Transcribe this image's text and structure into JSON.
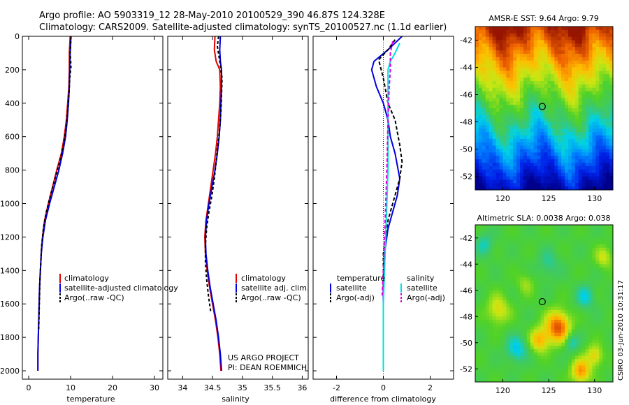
{
  "header": {
    "line1": "Argo profile: AO 5903319_12 28-May-2010 20100529_390 46.87S 124.328E",
    "line2": "Climatology: CARS2009. Satellite-adjusted climatology: synTS_20100527.nc (1.1d earlier)"
  },
  "colors": {
    "red": "#e00000",
    "blue": "#0000dd",
    "black": "#000000",
    "cyan": "#00e0e0",
    "magenta": "#e000e0"
  },
  "credits": {
    "project": "US ARGO PROJECT",
    "pi": "PI: DEAN ROEMMICH",
    "side": "CSIRO 03-Jun-2010 10:31:17"
  },
  "chart_data": [
    {
      "type": "line",
      "id": "temperature",
      "xlabel": "temperature",
      "xlim": [
        -1.5,
        32
      ],
      "xticks": [
        0,
        10,
        20,
        30
      ],
      "ylim": [
        0,
        2050
      ],
      "yticks": [
        0,
        200,
        400,
        600,
        800,
        1000,
        1200,
        1400,
        1600,
        1800,
        2000
      ],
      "y_reversed": true,
      "legend": [
        "climatology",
        "satellite-adjusted climatology",
        "Argo(..raw -QC)"
      ],
      "series": [
        {
          "name": "climatology",
          "color": "red",
          "dash": "",
          "points": [
            [
              9.9,
              0
            ],
            [
              9.8,
              50
            ],
            [
              9.7,
              100
            ],
            [
              9.7,
              200
            ],
            [
              9.6,
              300
            ],
            [
              9.3,
              400
            ],
            [
              9.0,
              500
            ],
            [
              8.5,
              600
            ],
            [
              7.8,
              700
            ],
            [
              6.7,
              800
            ],
            [
              5.7,
              900
            ],
            [
              4.7,
              1000
            ],
            [
              3.8,
              1100
            ],
            [
              3.3,
              1200
            ],
            [
              3.0,
              1300
            ],
            [
              2.8,
              1400
            ],
            [
              2.6,
              1500
            ],
            [
              2.5,
              1600
            ],
            [
              2.4,
              1700
            ],
            [
              2.3,
              1800
            ],
            [
              2.2,
              1900
            ],
            [
              2.2,
              2000
            ]
          ]
        },
        {
          "name": "satellite-adjusted climatology",
          "color": "blue",
          "dash": "",
          "points": [
            [
              10.1,
              0
            ],
            [
              10.0,
              50
            ],
            [
              9.9,
              100
            ],
            [
              9.8,
              200
            ],
            [
              9.7,
              300
            ],
            [
              9.5,
              400
            ],
            [
              9.2,
              500
            ],
            [
              8.8,
              600
            ],
            [
              8.1,
              700
            ],
            [
              7.2,
              800
            ],
            [
              6.1,
              900
            ],
            [
              5.0,
              1000
            ],
            [
              4.0,
              1100
            ],
            [
              3.4,
              1200
            ],
            [
              3.0,
              1300
            ],
            [
              2.8,
              1400
            ],
            [
              2.6,
              1500
            ],
            [
              2.5,
              1600
            ],
            [
              2.4,
              1700
            ],
            [
              2.3,
              1800
            ],
            [
              2.2,
              1900
            ],
            [
              2.2,
              2000
            ]
          ]
        },
        {
          "name": "Argo(..raw -QC)",
          "color": "black",
          "dash": "4,3",
          "points": [
            [
              10.1,
              0
            ],
            [
              10.0,
              50
            ],
            [
              9.9,
              100
            ],
            [
              10.1,
              180
            ],
            [
              9.8,
              250
            ],
            [
              9.6,
              350
            ],
            [
              9.3,
              450
            ],
            [
              8.9,
              550
            ],
            [
              8.3,
              650
            ],
            [
              7.4,
              750
            ],
            [
              6.3,
              850
            ],
            [
              5.2,
              950
            ],
            [
              4.2,
              1050
            ],
            [
              3.5,
              1150
            ],
            [
              3.1,
              1250
            ],
            [
              2.9,
              1350
            ],
            [
              2.7,
              1450
            ],
            [
              2.6,
              1550
            ],
            [
              2.5,
              1650
            ],
            [
              2.4,
              1750
            ]
          ]
        }
      ]
    },
    {
      "type": "line",
      "id": "salinity",
      "xlabel": "salinity",
      "xlim": [
        33.75,
        36.1
      ],
      "xticks": [
        34,
        34.5,
        35,
        35.5,
        36
      ],
      "ylim": [
        0,
        2050
      ],
      "y_reversed": true,
      "legend": [
        "climatology",
        "satellite adj. clim.",
        "Argo(..raw -QC)"
      ],
      "series": [
        {
          "name": "climatology",
          "color": "red",
          "dash": "",
          "points": [
            [
              34.54,
              0
            ],
            [
              34.53,
              80
            ],
            [
              34.56,
              150
            ],
            [
              34.62,
              200
            ],
            [
              34.63,
              300
            ],
            [
              34.62,
              400
            ],
            [
              34.6,
              500
            ],
            [
              34.58,
              600
            ],
            [
              34.55,
              700
            ],
            [
              34.51,
              800
            ],
            [
              34.47,
              900
            ],
            [
              34.43,
              1000
            ],
            [
              34.39,
              1100
            ],
            [
              34.37,
              1200
            ],
            [
              34.38,
              1300
            ],
            [
              34.41,
              1400
            ],
            [
              34.45,
              1500
            ],
            [
              34.5,
              1600
            ],
            [
              34.55,
              1700
            ],
            [
              34.59,
              1800
            ],
            [
              34.62,
              1900
            ],
            [
              34.64,
              2000
            ]
          ]
        },
        {
          "name": "satellite adj. clim.",
          "color": "blue",
          "dash": "",
          "points": [
            [
              34.63,
              0
            ],
            [
              34.62,
              80
            ],
            [
              34.63,
              150
            ],
            [
              34.65,
              200
            ],
            [
              34.65,
              300
            ],
            [
              34.64,
              400
            ],
            [
              34.63,
              500
            ],
            [
              34.61,
              600
            ],
            [
              34.58,
              700
            ],
            [
              34.54,
              800
            ],
            [
              34.49,
              900
            ],
            [
              34.44,
              1000
            ],
            [
              34.4,
              1100
            ],
            [
              34.38,
              1200
            ],
            [
              34.39,
              1300
            ],
            [
              34.42,
              1400
            ],
            [
              34.46,
              1500
            ],
            [
              34.51,
              1600
            ],
            [
              34.56,
              1700
            ],
            [
              34.6,
              1800
            ],
            [
              34.63,
              1900
            ],
            [
              34.65,
              2000
            ]
          ]
        },
        {
          "name": "Argo(..raw -QC)",
          "color": "black",
          "dash": "4,3",
          "points": [
            [
              34.6,
              0
            ],
            [
              34.58,
              60
            ],
            [
              34.62,
              150
            ],
            [
              34.66,
              250
            ],
            [
              34.65,
              350
            ],
            [
              34.64,
              450
            ],
            [
              34.62,
              550
            ],
            [
              34.59,
              650
            ],
            [
              34.56,
              750
            ],
            [
              34.53,
              850
            ],
            [
              34.49,
              950
            ],
            [
              34.44,
              1050
            ],
            [
              34.4,
              1150
            ],
            [
              34.38,
              1250
            ],
            [
              34.38,
              1350
            ],
            [
              34.4,
              1450
            ],
            [
              34.43,
              1550
            ],
            [
              34.47,
              1650
            ]
          ]
        }
      ]
    },
    {
      "type": "line",
      "id": "difference",
      "xlabel": "difference from climatology",
      "xlim": [
        -3,
        3
      ],
      "xticks": [
        -2,
        0,
        2
      ],
      "ylim": [
        0,
        2050
      ],
      "y_reversed": true,
      "legend_groups": [
        {
          "title": "temperature",
          "items": [
            {
              "label": "satellite",
              "color": "blue",
              "dash": ""
            },
            {
              "label": "Argo(-adj)",
              "color": "black",
              "dash": "4,3"
            }
          ]
        },
        {
          "title": "salinity",
          "items": [
            {
              "label": "satellite",
              "color": "cyan",
              "dash": ""
            },
            {
              "label": "Argo(-adj)",
              "color": "magenta",
              "dash": "4,3"
            }
          ]
        }
      ],
      "series": [
        {
          "name": "temperature satellite",
          "color": "blue",
          "dash": "",
          "points": [
            [
              0.8,
              0
            ],
            [
              0.2,
              80
            ],
            [
              -0.4,
              150
            ],
            [
              -0.5,
              200
            ],
            [
              -0.3,
              300
            ],
            [
              0.0,
              400
            ],
            [
              0.2,
              500
            ],
            [
              0.3,
              600
            ],
            [
              0.5,
              700
            ],
            [
              0.7,
              850
            ],
            [
              0.6,
              950
            ],
            [
              0.4,
              1050
            ],
            [
              0.2,
              1150
            ],
            [
              0.05,
              1300
            ],
            [
              0.0,
              1500
            ],
            [
              0.0,
              2000
            ]
          ]
        },
        {
          "name": "temperature Argo(-adj)",
          "color": "black",
          "dash": "5,3",
          "points": [
            [
              0.5,
              20
            ],
            [
              0.2,
              80
            ],
            [
              -0.2,
              140
            ],
            [
              0.0,
              250
            ],
            [
              0.2,
              400
            ],
            [
              0.5,
              500
            ],
            [
              0.7,
              650
            ],
            [
              0.8,
              750
            ],
            [
              0.7,
              850
            ],
            [
              0.5,
              950
            ],
            [
              0.2,
              1100
            ],
            [
              0.0,
              1300
            ],
            [
              0.0,
              1500
            ]
          ]
        },
        {
          "name": "salinity satellite",
          "color": "cyan",
          "dash": "",
          "points": [
            [
              0.7,
              40
            ],
            [
              0.5,
              100
            ],
            [
              0.3,
              150
            ],
            [
              0.2,
              200
            ],
            [
              0.2,
              400
            ],
            [
              0.2,
              600
            ],
            [
              0.2,
              800
            ],
            [
              0.15,
              1000
            ],
            [
              0.1,
              1200
            ],
            [
              0.05,
              1400
            ],
            [
              0.0,
              1600
            ],
            [
              0.0,
              2000
            ]
          ]
        },
        {
          "name": "salinity Argo(-adj)",
          "color": "magenta",
          "dash": "5,3",
          "points": [
            [
              0.4,
              30
            ],
            [
              0.3,
              100
            ],
            [
              0.3,
              200
            ],
            [
              0.25,
              300
            ],
            [
              0.2,
              500
            ],
            [
              0.15,
              800
            ],
            [
              0.1,
              1000
            ],
            [
              0.05,
              1200
            ],
            [
              0.0,
              1400
            ],
            [
              -0.05,
              1550
            ]
          ]
        }
      ]
    },
    {
      "type": "heatmap",
      "id": "sst-map",
      "title": "AMSR-E SST: 9.64 Argo: 9.79",
      "xlim": [
        117,
        132
      ],
      "ylim": [
        -53,
        -41
      ],
      "xticks": [
        120,
        125,
        130
      ],
      "yticks": [
        -42,
        -44,
        -46,
        -48,
        -50,
        -52
      ],
      "marker": {
        "lon": 124.3,
        "lat": -46.87
      }
    },
    {
      "type": "heatmap",
      "id": "sla-map",
      "title": "Altimetric SLA: 0.0038 Argo: 0.038",
      "xlim": [
        117,
        132
      ],
      "ylim": [
        -53,
        -41
      ],
      "xticks": [
        120,
        125,
        130
      ],
      "yticks": [
        -42,
        -44,
        -46,
        -48,
        -50,
        -52
      ],
      "marker": {
        "lon": 124.3,
        "lat": -46.87
      }
    }
  ]
}
